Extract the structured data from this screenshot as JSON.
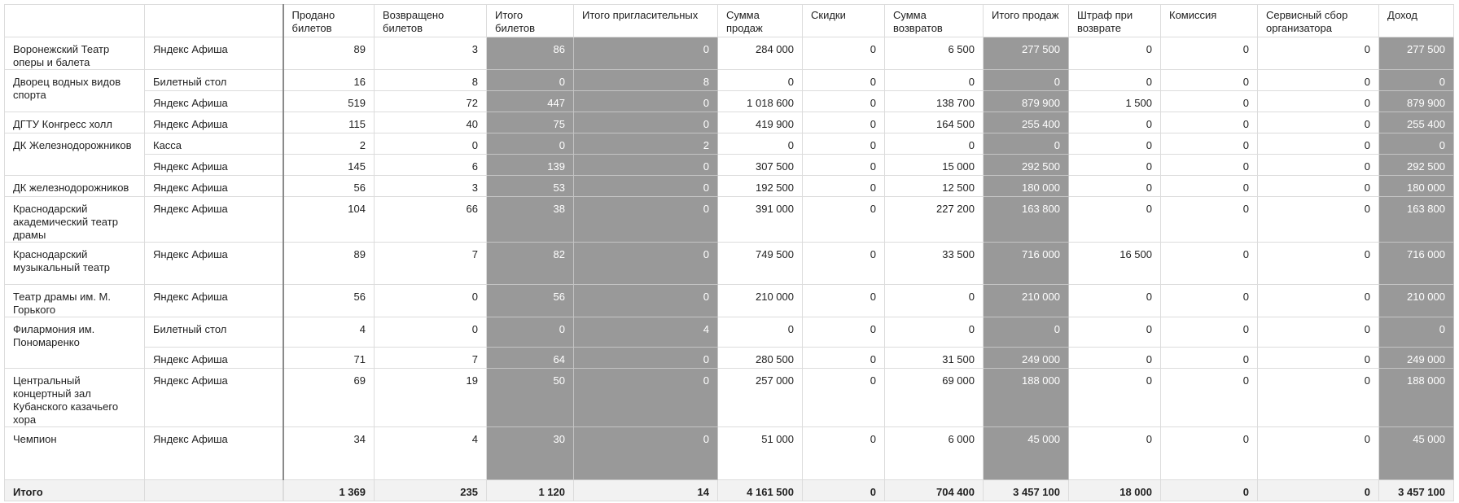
{
  "columns": [
    {
      "key": "venue",
      "label": ""
    },
    {
      "key": "channel",
      "label": ""
    },
    {
      "key": "sold",
      "label": "Продано билетов"
    },
    {
      "key": "returned",
      "label": "Возвращено билетов"
    },
    {
      "key": "total_tickets",
      "label": "Итого билетов"
    },
    {
      "key": "total_invitations",
      "label": "Итого пригласительных"
    },
    {
      "key": "sales_amount",
      "label": "Сумма продаж"
    },
    {
      "key": "discounts",
      "label": "Скидки"
    },
    {
      "key": "returns_amount",
      "label": "Сумма возвратов"
    },
    {
      "key": "total_sales",
      "label": "Итого продаж"
    },
    {
      "key": "return_penalty",
      "label": "Штраф при возврате"
    },
    {
      "key": "commission",
      "label": "Комиссия"
    },
    {
      "key": "service_fee",
      "label": "Сервисный сбор организатора"
    },
    {
      "key": "income",
      "label": "Доход"
    }
  ],
  "highlight_columns": [
    "total_tickets",
    "total_invitations",
    "total_sales",
    "income"
  ],
  "colors": {
    "highlight": "#999999",
    "total_row_bg": "#f2f2f2",
    "grid": "#dcdcdc"
  },
  "groups": [
    {
      "venue": "Воронежский Театр оперы и балета",
      "rows": [
        {
          "channel": "Яндекс Афиша",
          "sold": "89",
          "returned": "3",
          "total_tickets": "86",
          "total_invitations": "0",
          "sales_amount": "284 000",
          "discounts": "0",
          "returns_amount": "6 500",
          "total_sales": "277 500",
          "return_penalty": "0",
          "commission": "0",
          "service_fee": "0",
          "income": "277 500"
        }
      ]
    },
    {
      "venue": "Дворец водных видов спорта",
      "rows": [
        {
          "channel": "Билетный стол",
          "sold": "16",
          "returned": "8",
          "total_tickets": "0",
          "total_invitations": "8",
          "sales_amount": "0",
          "discounts": "0",
          "returns_amount": "0",
          "total_sales": "0",
          "return_penalty": "0",
          "commission": "0",
          "service_fee": "0",
          "income": "0"
        },
        {
          "channel": "Яндекс Афиша",
          "sold": "519",
          "returned": "72",
          "total_tickets": "447",
          "total_invitations": "0",
          "sales_amount": "1 018 600",
          "discounts": "0",
          "returns_amount": "138 700",
          "total_sales": "879 900",
          "return_penalty": "1 500",
          "commission": "0",
          "service_fee": "0",
          "income": "879 900"
        }
      ]
    },
    {
      "venue": "ДГТУ Конгресс холл",
      "rows": [
        {
          "channel": "Яндекс Афиша",
          "sold": "115",
          "returned": "40",
          "total_tickets": "75",
          "total_invitations": "0",
          "sales_amount": "419 900",
          "discounts": "0",
          "returns_amount": "164 500",
          "total_sales": "255 400",
          "return_penalty": "0",
          "commission": "0",
          "service_fee": "0",
          "income": "255 400"
        }
      ]
    },
    {
      "venue": "ДК Железнодорожников",
      "rows": [
        {
          "channel": "Касса",
          "sold": "2",
          "returned": "0",
          "total_tickets": "0",
          "total_invitations": "2",
          "sales_amount": "0",
          "discounts": "0",
          "returns_amount": "0",
          "total_sales": "0",
          "return_penalty": "0",
          "commission": "0",
          "service_fee": "0",
          "income": "0"
        },
        {
          "channel": "Яндекс Афиша",
          "sold": "145",
          "returned": "6",
          "total_tickets": "139",
          "total_invitations": "0",
          "sales_amount": "307 500",
          "discounts": "0",
          "returns_amount": "15 000",
          "total_sales": "292 500",
          "return_penalty": "0",
          "commission": "0",
          "service_fee": "0",
          "income": "292 500"
        }
      ]
    },
    {
      "venue": "ДК железнодорожников",
      "rows": [
        {
          "channel": "Яндекс Афиша",
          "sold": "56",
          "returned": "3",
          "total_tickets": "53",
          "total_invitations": "0",
          "sales_amount": "192 500",
          "discounts": "0",
          "returns_amount": "12 500",
          "total_sales": "180 000",
          "return_penalty": "0",
          "commission": "0",
          "service_fee": "0",
          "income": "180 000"
        }
      ]
    },
    {
      "venue": "Краснодарский академический театр драмы",
      "rows": [
        {
          "channel": "Яндекс Афиша",
          "sold": "104",
          "returned": "66",
          "total_tickets": "38",
          "total_invitations": "0",
          "sales_amount": "391 000",
          "discounts": "0",
          "returns_amount": "227 200",
          "total_sales": "163 800",
          "return_penalty": "0",
          "commission": "0",
          "service_fee": "0",
          "income": "163 800"
        }
      ]
    },
    {
      "venue": "Краснодарский музыкальный театр",
      "rows": [
        {
          "channel": "Яндекс Афиша",
          "sold": "89",
          "returned": "7",
          "total_tickets": "82",
          "total_invitations": "0",
          "sales_amount": "749 500",
          "discounts": "0",
          "returns_amount": "33 500",
          "total_sales": "716 000",
          "return_penalty": "16 500",
          "commission": "0",
          "service_fee": "0",
          "income": "716 000"
        }
      ]
    },
    {
      "venue": "Театр драмы им. М. Горького",
      "rows": [
        {
          "channel": "Яндекс Афиша",
          "sold": "56",
          "returned": "0",
          "total_tickets": "56",
          "total_invitations": "0",
          "sales_amount": "210 000",
          "discounts": "0",
          "returns_amount": "0",
          "total_sales": "210 000",
          "return_penalty": "0",
          "commission": "0",
          "service_fee": "0",
          "income": "210 000"
        }
      ]
    },
    {
      "venue": "Филармония им. Пономаренко",
      "rows": [
        {
          "channel": "Билетный стол",
          "sold": "4",
          "returned": "0",
          "total_tickets": "0",
          "total_invitations": "4",
          "sales_amount": "0",
          "discounts": "0",
          "returns_amount": "0",
          "total_sales": "0",
          "return_penalty": "0",
          "commission": "0",
          "service_fee": "0",
          "income": "0"
        },
        {
          "channel": "Яндекс Афиша",
          "sold": "71",
          "returned": "7",
          "total_tickets": "64",
          "total_invitations": "0",
          "sales_amount": "280 500",
          "discounts": "0",
          "returns_amount": "31 500",
          "total_sales": "249 000",
          "return_penalty": "0",
          "commission": "0",
          "service_fee": "0",
          "income": "249 000"
        }
      ]
    },
    {
      "venue": "Центральный концертный зал Кубанского казачьего хора",
      "rows": [
        {
          "channel": "Яндекс Афиша",
          "sold": "69",
          "returned": "19",
          "total_tickets": "50",
          "total_invitations": "0",
          "sales_amount": "257 000",
          "discounts": "0",
          "returns_amount": "69 000",
          "total_sales": "188 000",
          "return_penalty": "0",
          "commission": "0",
          "service_fee": "0",
          "income": "188 000"
        }
      ]
    },
    {
      "venue": "Чемпион",
      "rows": [
        {
          "channel": "Яндекс Афиша",
          "sold": "34",
          "returned": "4",
          "total_tickets": "30",
          "total_invitations": "0",
          "sales_amount": "51 000",
          "discounts": "0",
          "returns_amount": "6 000",
          "total_sales": "45 000",
          "return_penalty": "0",
          "commission": "0",
          "service_fee": "0",
          "income": "45 000"
        }
      ]
    }
  ],
  "total": {
    "venue": "Итого",
    "channel": "",
    "sold": "1 369",
    "returned": "235",
    "total_tickets": "1 120",
    "total_invitations": "14",
    "sales_amount": "4 161 500",
    "discounts": "0",
    "returns_amount": "704 400",
    "total_sales": "3 457 100",
    "return_penalty": "18 000",
    "commission": "0",
    "service_fee": "0",
    "income": "3 457 100"
  }
}
